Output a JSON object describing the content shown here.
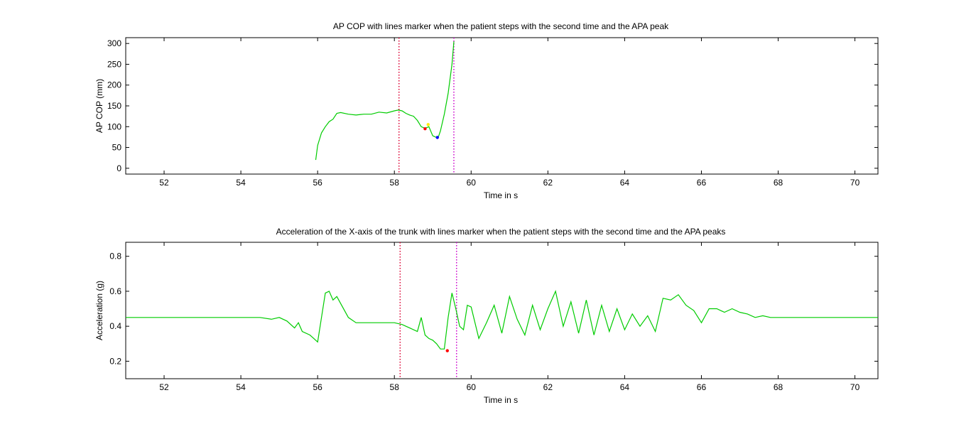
{
  "chart_data": [
    {
      "type": "line",
      "title": "AP COP with lines marker when the patient steps with the second time and the APA peak",
      "xlabel": "Time in s",
      "ylabel": "AP COP (mm)",
      "xlim": [
        51,
        70.6
      ],
      "ylim": [
        -14,
        314
      ],
      "xticks": [
        52,
        54,
        56,
        58,
        60,
        62,
        64,
        66,
        68,
        70
      ],
      "yticks": [
        0,
        50,
        100,
        150,
        200,
        250,
        300
      ],
      "grid": false,
      "series": [
        {
          "color": "#00cc00",
          "x": [
            55.95,
            56.0,
            56.1,
            56.2,
            56.3,
            56.4,
            56.5,
            56.6,
            56.8,
            57.0,
            57.2,
            57.4,
            57.6,
            57.8,
            58.0,
            58.1,
            58.2,
            58.3,
            58.4,
            58.5,
            58.6,
            58.7,
            58.8,
            58.9,
            59.0,
            59.05,
            59.1,
            59.15,
            59.2,
            59.3,
            59.4,
            59.5,
            59.55
          ],
          "y": [
            20,
            55,
            85,
            100,
            112,
            118,
            132,
            134,
            130,
            128,
            130,
            130,
            135,
            133,
            138,
            140,
            138,
            132,
            128,
            125,
            115,
            100,
            96,
            100,
            78,
            76,
            74,
            76,
            90,
            130,
            180,
            250,
            305
          ]
        }
      ],
      "vlines": [
        {
          "x": 58.12,
          "color": "#dd0033",
          "style": "dotted"
        },
        {
          "x": 59.55,
          "color": "#cc00cc",
          "style": "dotted"
        }
      ],
      "markers": [
        {
          "x": 58.8,
          "y": 95,
          "color": "#ff0000"
        },
        {
          "x": 58.88,
          "y": 105,
          "color": "#ffee00"
        },
        {
          "x": 59.12,
          "y": 74,
          "color": "#0000ff"
        }
      ]
    },
    {
      "type": "line",
      "title": "Acceleration of the X-axis of the trunk with lines marker when the patient steps with the second time and the APA peaks",
      "xlabel": "Time in s",
      "ylabel": "Acceleration (g)",
      "xlim": [
        51,
        70.6
      ],
      "ylim": [
        0.1,
        0.88
      ],
      "xticks": [
        52,
        54,
        56,
        58,
        60,
        62,
        64,
        66,
        68,
        70
      ],
      "yticks": [
        0.2,
        0.4,
        0.6,
        0.8
      ],
      "grid": false,
      "series": [
        {
          "color": "#00cc00",
          "x": [
            51.0,
            54.5,
            54.8,
            55.0,
            55.2,
            55.4,
            55.5,
            55.6,
            55.8,
            55.9,
            56.0,
            56.1,
            56.2,
            56.3,
            56.4,
            56.5,
            56.6,
            56.8,
            57.0,
            57.2,
            57.5,
            58.0,
            58.2,
            58.4,
            58.6,
            58.7,
            58.8,
            58.9,
            59.0,
            59.1,
            59.2,
            59.3,
            59.4,
            59.5,
            59.6,
            59.7,
            59.8,
            59.9,
            60.0,
            60.2,
            60.4,
            60.6,
            60.8,
            61.0,
            61.2,
            61.4,
            61.6,
            61.8,
            62.0,
            62.2,
            62.4,
            62.6,
            62.8,
            63.0,
            63.2,
            63.4,
            63.6,
            63.8,
            64.0,
            64.2,
            64.4,
            64.6,
            64.8,
            65.0,
            65.2,
            65.4,
            65.6,
            65.8,
            66.0,
            66.2,
            66.4,
            66.6,
            66.8,
            67.0,
            67.2,
            67.4,
            67.6,
            67.8,
            68.0,
            70.6
          ],
          "y": [
            0.45,
            0.45,
            0.44,
            0.45,
            0.43,
            0.39,
            0.42,
            0.37,
            0.35,
            0.33,
            0.31,
            0.45,
            0.59,
            0.6,
            0.55,
            0.57,
            0.53,
            0.45,
            0.42,
            0.42,
            0.42,
            0.42,
            0.41,
            0.39,
            0.37,
            0.45,
            0.35,
            0.33,
            0.32,
            0.3,
            0.27,
            0.27,
            0.45,
            0.59,
            0.5,
            0.4,
            0.38,
            0.52,
            0.51,
            0.33,
            0.42,
            0.52,
            0.36,
            0.57,
            0.44,
            0.35,
            0.52,
            0.38,
            0.5,
            0.6,
            0.4,
            0.54,
            0.36,
            0.55,
            0.35,
            0.52,
            0.37,
            0.5,
            0.38,
            0.47,
            0.4,
            0.46,
            0.37,
            0.56,
            0.55,
            0.58,
            0.52,
            0.49,
            0.42,
            0.5,
            0.5,
            0.48,
            0.5,
            0.48,
            0.47,
            0.45,
            0.46,
            0.45,
            0.45,
            0.45
          ]
        }
      ],
      "vlines": [
        {
          "x": 58.15,
          "color": "#dd0033",
          "style": "dotted"
        },
        {
          "x": 59.62,
          "color": "#cc00cc",
          "style": "dotted"
        }
      ],
      "markers": [
        {
          "x": 59.38,
          "y": 0.26,
          "color": "#ff0000"
        }
      ]
    }
  ]
}
